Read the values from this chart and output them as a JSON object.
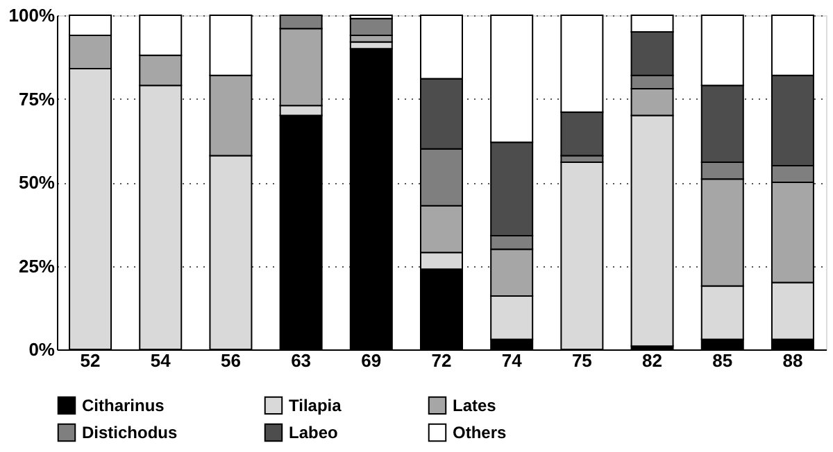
{
  "chart_data": {
    "type": "bar",
    "stacked": true,
    "categories": [
      "52",
      "54",
      "56",
      "63",
      "69",
      "72",
      "74",
      "75",
      "82",
      "85",
      "88"
    ],
    "series": [
      {
        "name": "Citharinus",
        "color": "#000000",
        "values": [
          0,
          0,
          0,
          70,
          90,
          24,
          3,
          0,
          1,
          3,
          3
        ]
      },
      {
        "name": "Tilapia",
        "color": "#d9d9d9",
        "values": [
          84,
          79,
          58,
          3,
          2,
          5,
          13,
          56,
          69,
          16,
          17
        ]
      },
      {
        "name": "Lates",
        "color": "#a6a6a6",
        "values": [
          10,
          9,
          24,
          23,
          2,
          14,
          14,
          0,
          8,
          32,
          30
        ]
      },
      {
        "name": "Distichodus",
        "color": "#7f7f7f",
        "values": [
          0,
          0,
          0,
          4,
          5,
          17,
          4,
          2,
          4,
          5,
          5
        ]
      },
      {
        "name": "Labeo",
        "color": "#4d4d4d",
        "values": [
          0,
          0,
          0,
          0,
          0,
          21,
          28,
          13,
          13,
          23,
          27
        ]
      },
      {
        "name": "Others",
        "color": "#ffffff",
        "values": [
          6,
          12,
          18,
          0,
          1,
          19,
          38,
          29,
          5,
          21,
          18
        ]
      }
    ],
    "ylim": [
      0,
      100
    ],
    "yticks": [
      {
        "value": 0,
        "label": "0%"
      },
      {
        "value": 25,
        "label": "25%"
      },
      {
        "value": 50,
        "label": "50%"
      },
      {
        "value": 75,
        "label": "75%"
      },
      {
        "value": 100,
        "label": "100%"
      }
    ],
    "grid": "y",
    "legend": "bottom"
  }
}
